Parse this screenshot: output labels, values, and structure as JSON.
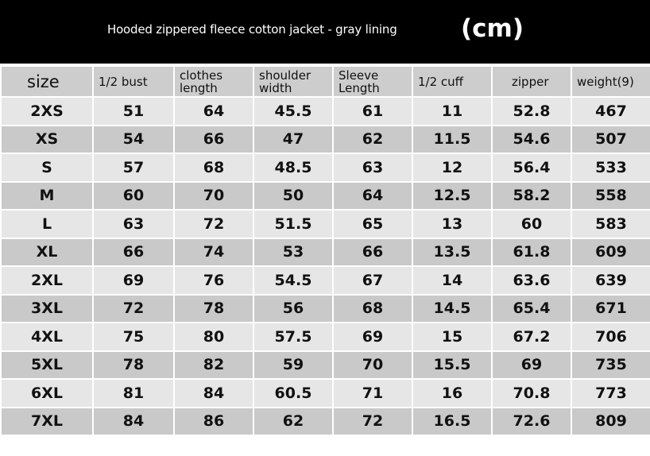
{
  "title": "Hooded zippered fleece cotton jacket - gray lining",
  "unit": "(cm)",
  "headers": [
    "size",
    "1/2 bust",
    "clothes length",
    "shoulder width",
    "Sleeve Length",
    "1/2 cuff",
    "zipper",
    "weight(9)"
  ],
  "rows": [
    [
      "2XS",
      "51",
      "64",
      "45.5",
      "61",
      "11",
      "52.8",
      "467"
    ],
    [
      "XS",
      "54",
      "66",
      "47",
      "62",
      "11.5",
      "54.6",
      "507"
    ],
    [
      "S",
      "57",
      "68",
      "48.5",
      "63",
      "12",
      "56.4",
      "533"
    ],
    [
      "M",
      "60",
      "70",
      "50",
      "64",
      "12.5",
      "58.2",
      "558"
    ],
    [
      "L",
      "63",
      "72",
      "51.5",
      "65",
      "13",
      "60",
      "583"
    ],
    [
      "XL",
      "66",
      "74",
      "53",
      "66",
      "13.5",
      "61.8",
      "609"
    ],
    [
      "2XL",
      "69",
      "76",
      "54.5",
      "67",
      "14",
      "63.6",
      "639"
    ],
    [
      "3XL",
      "72",
      "78",
      "56",
      "68",
      "14.5",
      "65.4",
      "671"
    ],
    [
      "4XL",
      "75",
      "80",
      "57.5",
      "69",
      "15",
      "67.2",
      "706"
    ],
    [
      "5XL",
      "78",
      "82",
      "59",
      "70",
      "15.5",
      "69",
      "735"
    ],
    [
      "6XL",
      "81",
      "84",
      "60.5",
      "71",
      "16",
      "70.8",
      "773"
    ],
    [
      "7XL",
      "84",
      "86",
      "62",
      "72",
      "16.5",
      "72.6",
      "809"
    ]
  ]
}
